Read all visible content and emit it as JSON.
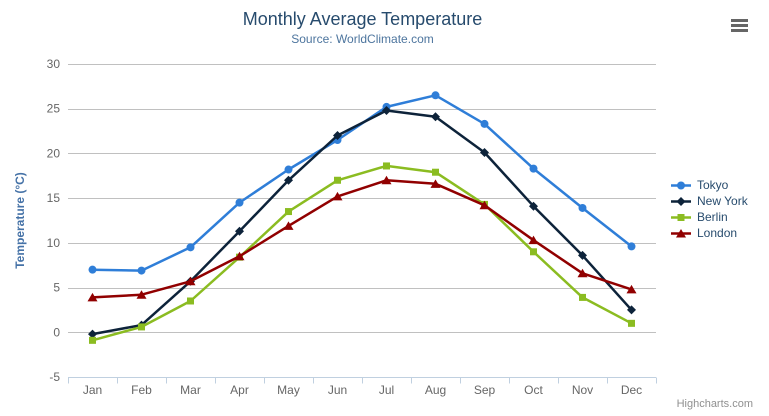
{
  "chart_data": {
    "type": "line",
    "title": "Monthly Average Temperature",
    "subtitle": "Source: WorldClimate.com",
    "categories": [
      "Jan",
      "Feb",
      "Mar",
      "Apr",
      "May",
      "Jun",
      "Jul",
      "Aug",
      "Sep",
      "Oct",
      "Nov",
      "Dec"
    ],
    "series": [
      {
        "name": "Tokyo",
        "color": "#2f7ed8",
        "marker": "circle",
        "values": [
          7.0,
          6.9,
          9.5,
          14.5,
          18.2,
          21.5,
          25.2,
          26.5,
          23.3,
          18.3,
          13.9,
          9.6
        ]
      },
      {
        "name": "New York",
        "color": "#0d233a",
        "marker": "diamond",
        "values": [
          -0.2,
          0.8,
          5.7,
          11.3,
          17.0,
          22.0,
          24.8,
          24.1,
          20.1,
          14.1,
          8.6,
          2.5
        ]
      },
      {
        "name": "Berlin",
        "color": "#8bbc21",
        "marker": "square",
        "values": [
          -0.9,
          0.6,
          3.5,
          8.4,
          13.5,
          17.0,
          18.6,
          17.9,
          14.3,
          9.0,
          3.9,
          1.0
        ]
      },
      {
        "name": "London",
        "color": "#910000",
        "marker": "triangle",
        "values": [
          3.9,
          4.2,
          5.7,
          8.5,
          11.9,
          15.2,
          17.0,
          16.6,
          14.2,
          10.3,
          6.6,
          4.8
        ]
      }
    ],
    "xlabel": "",
    "ylabel": "Temperature (°C)",
    "ylim": [
      -5,
      30
    ],
    "ytick_interval": 5,
    "grid": true,
    "legend_position": "right"
  },
  "credits": {
    "label": "Highcharts.com"
  },
  "export_menu": {
    "icon": "hamburger-icon"
  },
  "colors": {
    "title": "#274b6d",
    "subtitle": "#4d759e",
    "axis_labels": "#666666",
    "axis_title": "#4572a7",
    "grid_line": "#c0c0c0",
    "axis_line": "#c0d0e0",
    "legend_text": "#274b6d",
    "credits_text": "#909090",
    "background": "#ffffff"
  }
}
